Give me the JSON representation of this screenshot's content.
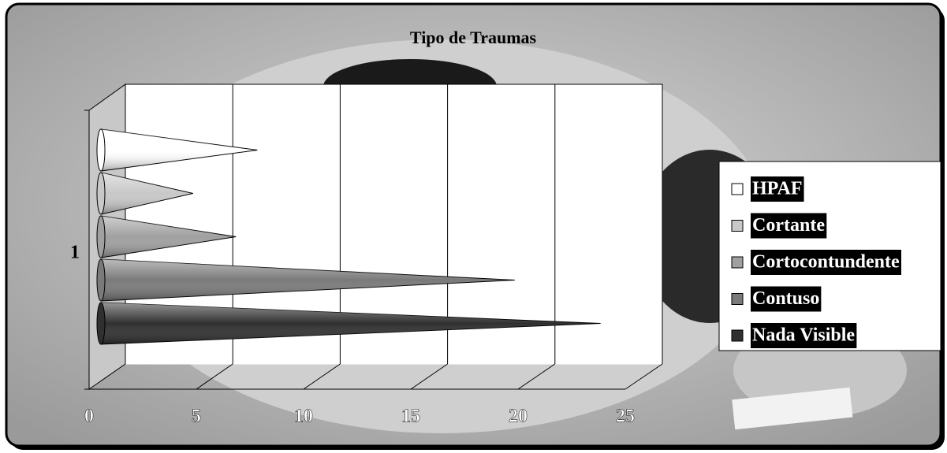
{
  "chart_data": {
    "type": "bar",
    "orientation": "horizontal",
    "shape": "cone",
    "title": "Tipo de Traumas",
    "categories": [
      "1"
    ],
    "series": [
      {
        "name": "HPAF",
        "color": "#ffffff",
        "values": [
          7
        ]
      },
      {
        "name": "Cortante",
        "color": "#c8c8c8",
        "values": [
          4
        ]
      },
      {
        "name": "Cortocontundente",
        "color": "#a0a0a0",
        "values": [
          6
        ]
      },
      {
        "name": "Contuso",
        "color": "#7a7a7a",
        "values": [
          19
        ]
      },
      {
        "name": "Nada Visible",
        "color": "#303030",
        "values": [
          23
        ]
      }
    ],
    "xlim": [
      0,
      25
    ],
    "xticks": [
      0,
      5,
      10,
      15,
      20,
      25
    ],
    "grid": true,
    "legend": "right"
  }
}
